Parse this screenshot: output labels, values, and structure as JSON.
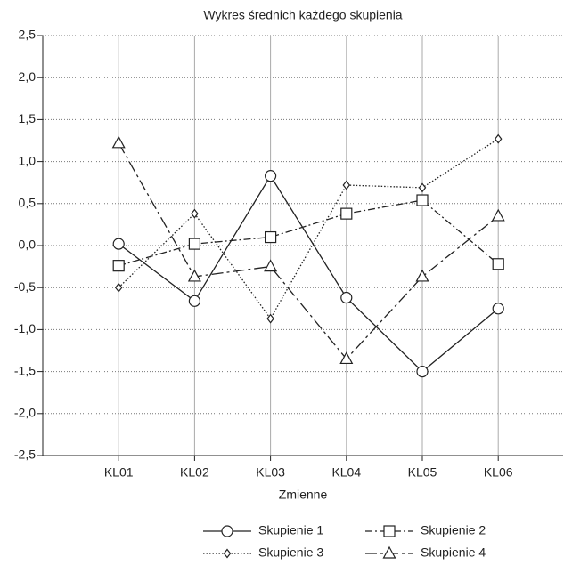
{
  "chart_data": {
    "type": "line",
    "title": "Wykres średnich każdego skupienia",
    "xlabel": "Zmienne",
    "categories": [
      "KL01",
      "KL02",
      "KL03",
      "KL04",
      "KL05",
      "KL06"
    ],
    "ylim": [
      -2.5,
      2.5
    ],
    "yticks": [
      {
        "value": 2.5,
        "label": "2,5"
      },
      {
        "value": 2.0,
        "label": "2,0"
      },
      {
        "value": 1.5,
        "label": "1,5"
      },
      {
        "value": 1.0,
        "label": "1,0"
      },
      {
        "value": 0.5,
        "label": "0,5"
      },
      {
        "value": 0.0,
        "label": "0,0"
      },
      {
        "value": -0.5,
        "label": "-0,5"
      },
      {
        "value": -1.0,
        "label": "-1,0"
      },
      {
        "value": -1.5,
        "label": "-1,5"
      },
      {
        "value": -2.0,
        "label": "-2,0"
      },
      {
        "value": -2.5,
        "label": "-2,5"
      }
    ],
    "grid": true,
    "legend": "bottom",
    "series": [
      {
        "name": "Skupienie 1",
        "color": "#222222",
        "marker": "circle",
        "dash": "solid",
        "values": [
          0.02,
          -0.66,
          0.83,
          -0.62,
          -1.5,
          -0.75
        ]
      },
      {
        "name": "Skupienie 2",
        "color": "#222222",
        "marker": "square",
        "dash": "dashdot",
        "values": [
          -0.24,
          0.02,
          0.1,
          0.38,
          0.54,
          -0.22
        ]
      },
      {
        "name": "Skupienie 3",
        "color": "#222222",
        "marker": "diamond",
        "dash": "dotted",
        "values": [
          -0.5,
          0.38,
          -0.87,
          0.72,
          0.69,
          1.27
        ]
      },
      {
        "name": "Skupienie 4",
        "color": "#222222",
        "marker": "triangle",
        "dash": "longdash",
        "values": [
          1.22,
          -0.37,
          -0.25,
          -1.35,
          -0.37,
          0.35
        ]
      }
    ]
  }
}
